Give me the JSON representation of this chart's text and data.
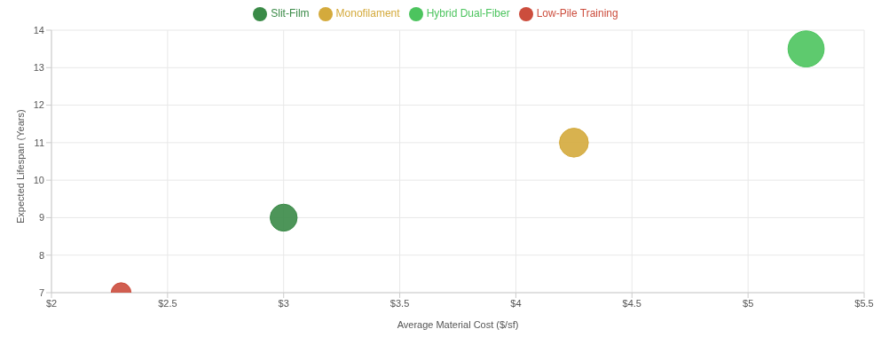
{
  "chart_data": {
    "type": "bubble",
    "xlabel": "Average Material Cost ($/sf)",
    "ylabel": "Expected Lifespan (Years)",
    "xlim": [
      2,
      5.5
    ],
    "ylim": [
      7,
      14
    ],
    "xticks": [
      {
        "value": 2,
        "label": "$2"
      },
      {
        "value": 2.5,
        "label": "$2.5"
      },
      {
        "value": 3,
        "label": "$3"
      },
      {
        "value": 3.5,
        "label": "$3.5"
      },
      {
        "value": 4,
        "label": "$4"
      },
      {
        "value": 4.5,
        "label": "$4.5"
      },
      {
        "value": 5,
        "label": "$5"
      },
      {
        "value": 5.5,
        "label": "$5.5"
      }
    ],
    "yticks": [
      7,
      8,
      9,
      10,
      11,
      12,
      13,
      14
    ],
    "grid": true,
    "legend": "top",
    "marker": "circle",
    "series": [
      {
        "name": "Slit-Film",
        "color": "#3a8a47",
        "x": [
          3
        ],
        "values": [
          9
        ],
        "sizes": [
          0.56
        ]
      },
      {
        "name": "Monofilament",
        "color": "#d4aa3c",
        "x": [
          4.25
        ],
        "values": [
          11
        ],
        "sizes": [
          0.64
        ]
      },
      {
        "name": "Hybrid Dual-Fiber",
        "color": "#4cc45e",
        "x": [
          5.25
        ],
        "values": [
          13.5
        ],
        "sizes": [
          1
        ]
      },
      {
        "name": "Low-Pile Training",
        "color": "#cc4d3d",
        "x": [
          2.3
        ],
        "values": [
          7
        ],
        "sizes": [
          0.3
        ]
      }
    ]
  }
}
